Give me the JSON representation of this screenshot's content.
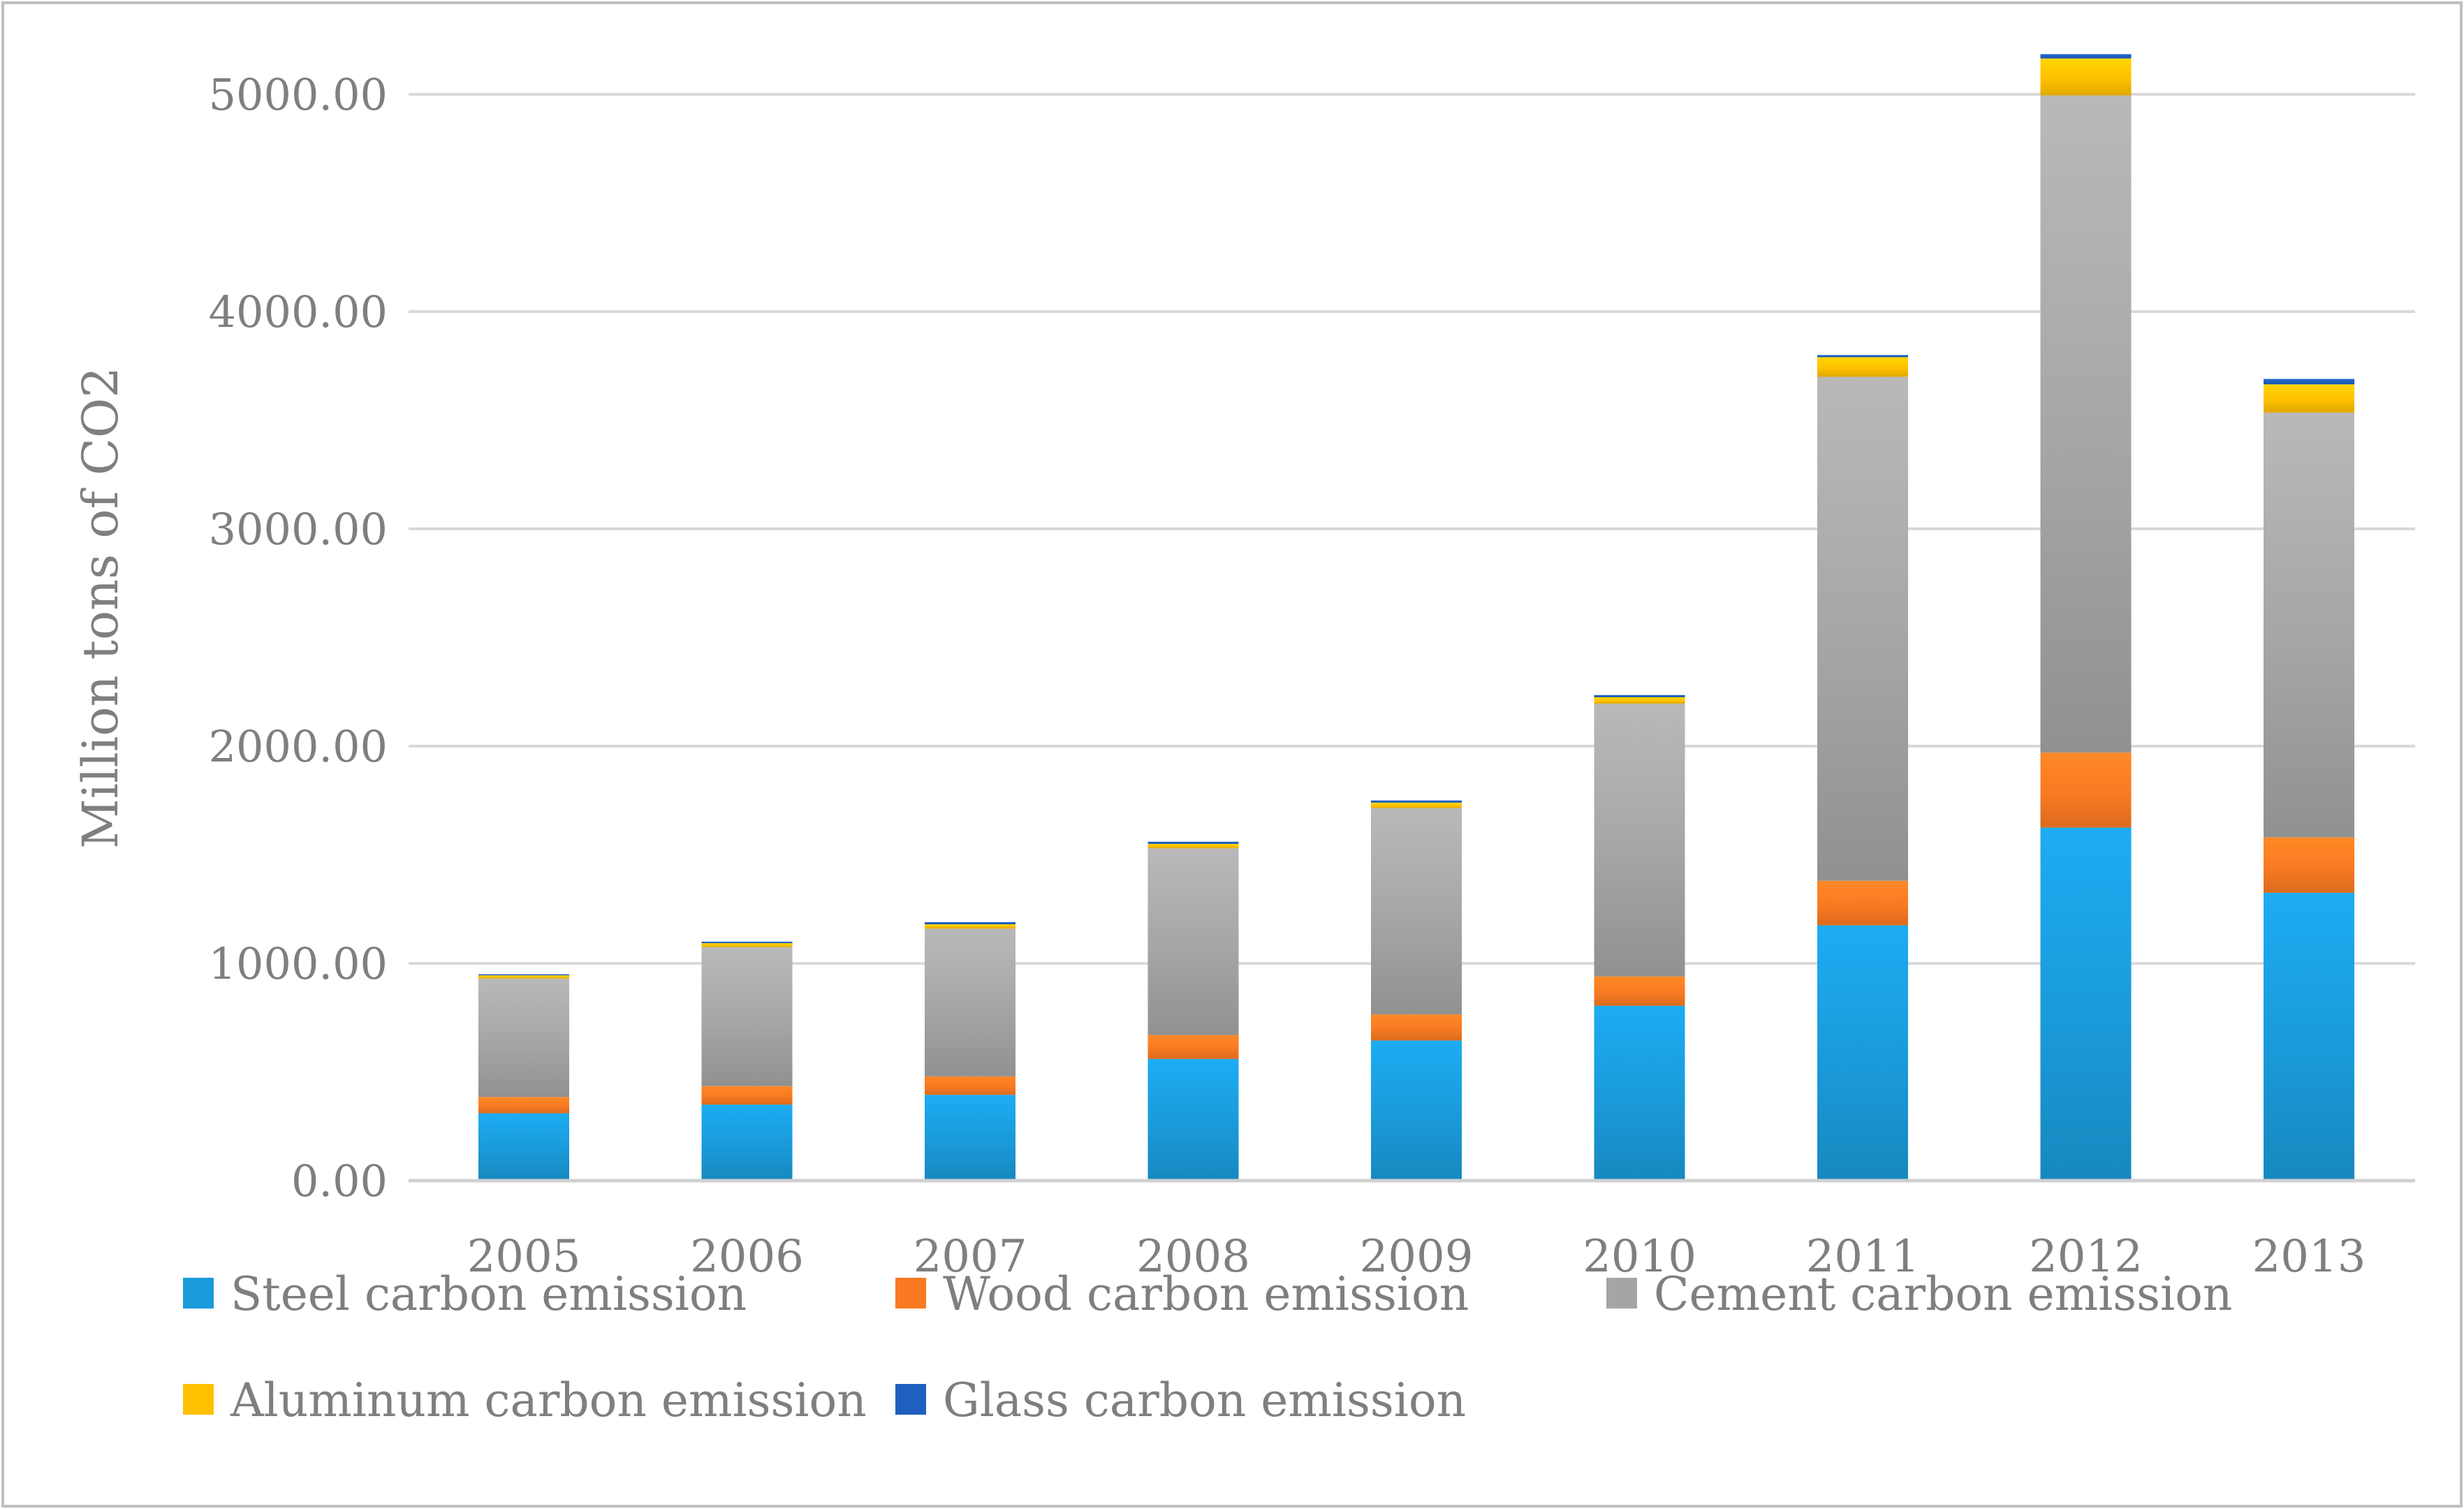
{
  "colors": {
    "steel": "#1a9ad9",
    "wood": "#f97a22",
    "cement": "#a5a5a5",
    "aluminum": "#ffc000",
    "glass": "#1f5fbf",
    "grid": "#d9d9d9",
    "axis": "#d0d0d0",
    "text": "#7f7f7f",
    "border": "#bfbfbf"
  },
  "chart_data": {
    "type": "bar",
    "stacked": true,
    "title": "",
    "xlabel": "",
    "ylabel": "Million tons of CO2",
    "ylim": [
      0,
      5200
    ],
    "yticks": [
      0,
      1000,
      2000,
      3000,
      4000,
      5000
    ],
    "ytick_labels": [
      "0.00",
      "1000.00",
      "2000.00",
      "3000.00",
      "4000.00",
      "5000.00"
    ],
    "grid": true,
    "legend_position": "bottom",
    "categories": [
      "2005",
      "2006",
      "2007",
      "2008",
      "2009",
      "2010",
      "2011",
      "2012",
      "2013"
    ],
    "series": [
      {
        "name": "Steel carbon emission",
        "key": "steel",
        "values": [
          310,
          350,
          395,
          560,
          645,
          805,
          1175,
          1625,
          1325
        ]
      },
      {
        "name": "Wood carbon emission",
        "key": "wood",
        "values": [
          75,
          85,
          85,
          110,
          120,
          135,
          205,
          345,
          255
        ]
      },
      {
        "name": "Cement carbon emission",
        "key": "cement",
        "values": [
          545,
          640,
          680,
          860,
          950,
          1255,
          2320,
          3025,
          1955
        ]
      },
      {
        "name": "Aluminum carbon emission",
        "key": "aluminum",
        "values": [
          15,
          18,
          20,
          20,
          25,
          30,
          90,
          170,
          130
        ]
      },
      {
        "name": "Glass carbon emission",
        "key": "glass",
        "values": [
          5,
          7,
          10,
          10,
          10,
          10,
          10,
          20,
          25
        ]
      }
    ]
  }
}
